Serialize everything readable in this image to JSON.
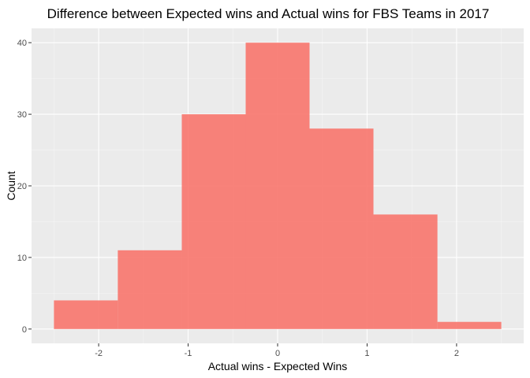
{
  "chart_data": {
    "type": "bar",
    "title": "Difference between Expected wins and Actual wins for FBS Teams in 2017",
    "xlabel": "Actual wins - Expected Wins",
    "ylabel": "Count",
    "bins": [
      {
        "x0": -2.5,
        "x1": -1.786,
        "count": 4
      },
      {
        "x0": -1.786,
        "x1": -1.071,
        "count": 11
      },
      {
        "x0": -1.071,
        "x1": -0.357,
        "count": 30
      },
      {
        "x0": -0.357,
        "x1": 0.357,
        "count": 40
      },
      {
        "x0": 0.357,
        "x1": 1.071,
        "count": 28
      },
      {
        "x0": 1.071,
        "x1": 1.786,
        "count": 16
      },
      {
        "x0": 1.786,
        "x1": 2.5,
        "count": 1
      }
    ],
    "xlim": [
      -2.75,
      2.75
    ],
    "ylim": [
      -2,
      42
    ],
    "xticks": [
      {
        "value": -2,
        "label": "-2"
      },
      {
        "value": -1,
        "label": "-1"
      },
      {
        "value": 0,
        "label": "0"
      },
      {
        "value": 1,
        "label": "1"
      },
      {
        "value": 2,
        "label": "2"
      }
    ],
    "yticks": [
      {
        "value": 0,
        "label": "0"
      },
      {
        "value": 10,
        "label": "10"
      },
      {
        "value": 20,
        "label": "20"
      },
      {
        "value": 30,
        "label": "30"
      },
      {
        "value": 40,
        "label": "40"
      }
    ],
    "grid": true,
    "colors": {
      "bar": "#f8766d",
      "bar_alpha": 0.9,
      "panel": "#ebebeb",
      "grid_major": "#ffffff",
      "grid_minor": "#f5f5f5",
      "tick_text": "#4d4d4d",
      "tick_mark": "#333333"
    }
  }
}
